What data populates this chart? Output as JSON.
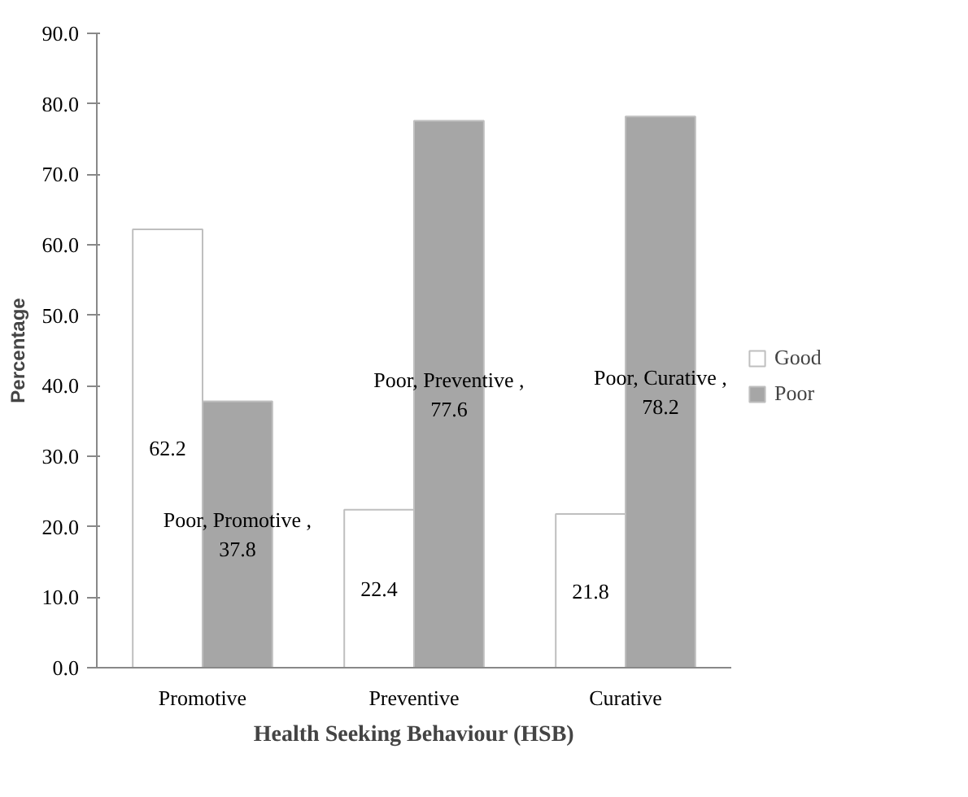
{
  "chart_data": {
    "type": "bar",
    "xlabel": "Health Seeking Behaviour (HSB)",
    "ylabel": "Percentage",
    "categories": [
      "Promotive",
      "Preventive",
      "Curative"
    ],
    "series": [
      {
        "name": "Good",
        "color": "#ffffff",
        "values": [
          62.2,
          22.4,
          21.8
        ],
        "value_labels": [
          "62.2",
          "22.4",
          "21.8"
        ]
      },
      {
        "name": "Poor",
        "color": "#a6a6a6",
        "values": [
          37.8,
          77.6,
          78.2
        ],
        "value_labels": [
          "Poor, Promotive , 37.8",
          "Poor, Preventive , 77.6",
          "Poor, Curative , 78.2"
        ]
      }
    ],
    "ylim": [
      0,
      90
    ],
    "yticks": [
      {
        "value": 0,
        "label": "0.0"
      },
      {
        "value": 10,
        "label": "10.0"
      },
      {
        "value": 20,
        "label": "20.0"
      },
      {
        "value": 30,
        "label": "30.0"
      },
      {
        "value": 40,
        "label": "40.0"
      },
      {
        "value": 50,
        "label": "50.0"
      },
      {
        "value": 60,
        "label": "60.0"
      },
      {
        "value": 70,
        "label": "70.0"
      },
      {
        "value": 80,
        "label": "80.0"
      },
      {
        "value": 90,
        "label": "90.0"
      }
    ],
    "legend": "right"
  }
}
